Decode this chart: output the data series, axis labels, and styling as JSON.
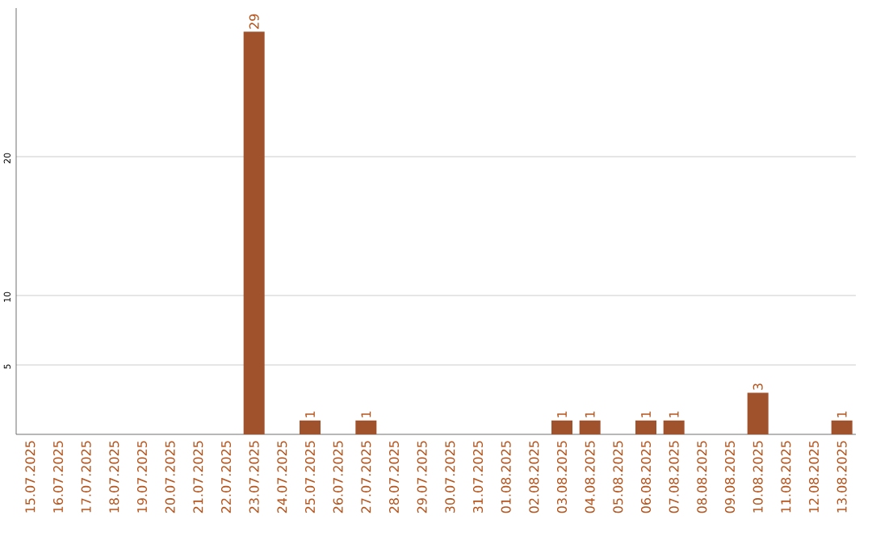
{
  "chart_data": {
    "type": "bar",
    "categories": [
      "15.07.2025",
      "16.07.2025",
      "17.07.2025",
      "18.07.2025",
      "19.07.2025",
      "20.07.2025",
      "21.07.2025",
      "22.07.2025",
      "23.07.2025",
      "24.07.2025",
      "25.07.2025",
      "26.07.2025",
      "27.07.2025",
      "28.07.2025",
      "29.07.2025",
      "30.07.2025",
      "31.07.2025",
      "01.08.2025",
      "02.08.2025",
      "03.08.2025",
      "04.08.2025",
      "05.08.2025",
      "06.08.2025",
      "07.08.2025",
      "08.08.2025",
      "09.08.2025",
      "10.08.2025",
      "11.08.2025",
      "12.08.2025",
      "13.08.2025"
    ],
    "values": [
      0,
      0,
      0,
      0,
      0,
      0,
      0,
      0,
      29,
      0,
      1,
      0,
      1,
      0,
      0,
      0,
      0,
      0,
      0,
      1,
      1,
      0,
      1,
      1,
      0,
      0,
      3,
      0,
      0,
      1
    ],
    "value_labels": [
      null,
      null,
      null,
      null,
      null,
      null,
      null,
      null,
      "29",
      null,
      "1",
      null,
      "1",
      null,
      null,
      null,
      null,
      null,
      null,
      "1",
      "1",
      null,
      "1",
      "1",
      null,
      null,
      "3",
      null,
      null,
      "1"
    ],
    "color": "#a0522d",
    "ylim": [
      0,
      30.7
    ],
    "yticks": [
      5,
      10,
      20
    ],
    "grid": "y"
  }
}
